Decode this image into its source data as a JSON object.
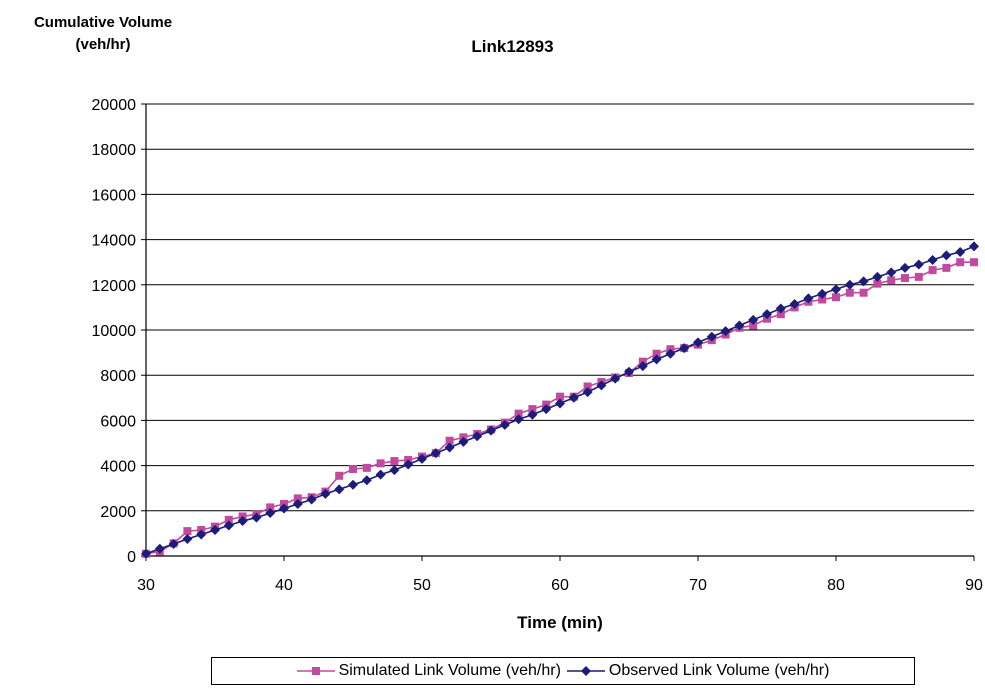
{
  "chart_data": {
    "type": "line",
    "title": "Link12893",
    "ylabel": "Cumulative Volume (veh/hr)",
    "ylabel_lines": [
      "Cumulative Volume",
      "(veh/hr)"
    ],
    "xlabel": "Time (min)",
    "xlim": [
      30,
      90
    ],
    "ylim": [
      0,
      20000
    ],
    "xticks": [
      30,
      40,
      50,
      60,
      70,
      80,
      90
    ],
    "yticks": [
      0,
      2000,
      4000,
      6000,
      8000,
      10000,
      12000,
      14000,
      16000,
      18000,
      20000
    ],
    "grid": "horizontal",
    "legend_position": "bottom",
    "x": [
      30,
      31,
      32,
      33,
      34,
      35,
      36,
      37,
      38,
      39,
      40,
      41,
      42,
      43,
      44,
      45,
      46,
      47,
      48,
      49,
      50,
      51,
      52,
      53,
      54,
      55,
      56,
      57,
      58,
      59,
      60,
      61,
      62,
      63,
      64,
      65,
      66,
      67,
      68,
      69,
      70,
      71,
      72,
      73,
      74,
      75,
      76,
      77,
      78,
      79,
      80,
      81,
      82,
      83,
      84,
      85,
      86,
      87,
      88,
      89,
      90
    ],
    "series": [
      {
        "name": "Simulated Link Volume (veh/hr)",
        "color": "#c04a9e",
        "marker": "square",
        "values": [
          100,
          200,
          560,
          1100,
          1150,
          1300,
          1600,
          1750,
          1850,
          2150,
          2300,
          2550,
          2600,
          2850,
          3550,
          3850,
          3900,
          4100,
          4200,
          4250,
          4400,
          4550,
          5100,
          5250,
          5400,
          5600,
          5900,
          6300,
          6500,
          6700,
          7050,
          7050,
          7500,
          7700,
          7900,
          8100,
          8600,
          8950,
          9150,
          9200,
          9350,
          9550,
          9800,
          10100,
          10200,
          10500,
          10700,
          11000,
          11250,
          11350,
          11450,
          11650,
          11650,
          12050,
          12200,
          12300,
          12350,
          12650,
          12750,
          13000,
          13000
        ]
      },
      {
        "name": "Observed Link Volume (veh/hr)",
        "color": "#1c1c7a",
        "marker": "diamond",
        "values": [
          100,
          320,
          530,
          750,
          950,
          1150,
          1350,
          1550,
          1700,
          1900,
          2100,
          2300,
          2500,
          2750,
          2950,
          3150,
          3350,
          3600,
          3800,
          4050,
          4300,
          4550,
          4800,
          5050,
          5300,
          5550,
          5800,
          6050,
          6250,
          6500,
          6750,
          7000,
          7250,
          7550,
          7850,
          8150,
          8400,
          8700,
          8950,
          9200,
          9450,
          9700,
          9950,
          10200,
          10450,
          10700,
          10950,
          11150,
          11400,
          11600,
          11800,
          12000,
          12150,
          12350,
          12550,
          12750,
          12900,
          13100,
          13300,
          13450,
          13700
        ]
      }
    ]
  }
}
